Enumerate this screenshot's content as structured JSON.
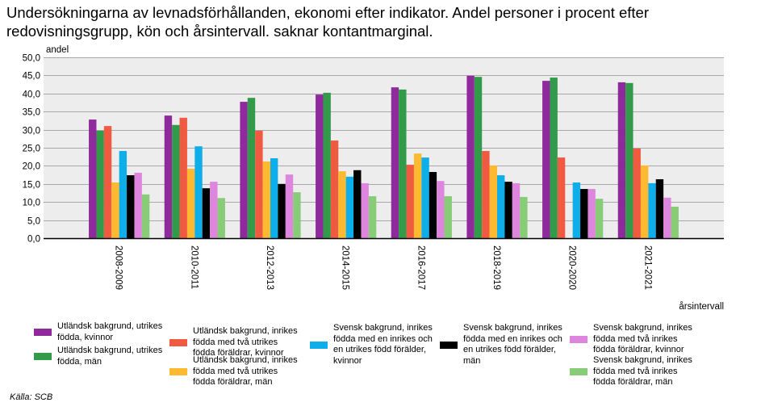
{
  "chart_data": {
    "type": "bar",
    "title": "Undersökningarna av levnadsförhållanden, ekonomi efter indikator. Andel personer i procent efter redovisningsgrupp, kön och årsintervall. saknar kontantmarginal.",
    "xlabel": "årsintervall",
    "ylabel": "andel",
    "ylim": [
      0,
      50
    ],
    "yticks": [
      "0,0",
      "5,0",
      "10,0",
      "15,0",
      "20,0",
      "25,0",
      "30,0",
      "35,0",
      "40,0",
      "45,0",
      "50,0"
    ],
    "ytick_values": [
      0,
      5,
      10,
      15,
      20,
      25,
      30,
      35,
      40,
      45,
      50
    ],
    "grid": true,
    "legend_position": "bottom",
    "categories": [
      "2008-2009",
      "2010-2011",
      "2012-2013",
      "2014-2015",
      "2016-2017",
      "2018-2019",
      "2020-2020",
      "2021-2021"
    ],
    "series": [
      {
        "name": "Utländsk bakgrund, utrikes födda, kvinnor",
        "color": "#8e2a9b",
        "values": [
          32.8,
          33.9,
          37.7,
          39.7,
          41.7,
          44.9,
          43.5,
          43.1
        ]
      },
      {
        "name": "Utländsk bakgrund, utrikes födda, män",
        "color": "#329b4a",
        "values": [
          29.7,
          31.3,
          38.8,
          40.2,
          41.1,
          44.6,
          44.4,
          42.9
        ]
      },
      {
        "name": "Utländsk bakgrund, inrikes födda med två utrikes födda föräldrar, kvinnor",
        "color": "#f05a40",
        "values": [
          31.0,
          33.3,
          29.7,
          27.0,
          20.3,
          24.1,
          22.3,
          24.8
        ]
      },
      {
        "name": "Utländsk bakgrund, inrikes födda med två utrikes födda föräldrar, män",
        "color": "#fdb92f",
        "values": [
          15.4,
          19.2,
          21.2,
          18.5,
          23.4,
          20.1,
          null,
          20.1
        ]
      },
      {
        "name": "Svensk bakgrund, inrikes födda med en inrikes och en utrikes född förälder, kvinnor",
        "color": "#0eaeea",
        "values": [
          24.1,
          25.4,
          22.1,
          17.0,
          22.3,
          17.4,
          15.4,
          15.2
        ]
      },
      {
        "name": "Svensk bakgrund, inrikes födda med en inrikes och en utrikes född förälder, män",
        "color": "#000000",
        "values": [
          17.4,
          13.8,
          15.0,
          18.8,
          18.3,
          15.6,
          13.6,
          16.3
        ]
      },
      {
        "name": "Svensk bakgrund, inrikes födda med två inrikes födda föräldrar, kvinnor",
        "color": "#de86dd",
        "values": [
          18.1,
          15.6,
          17.6,
          15.2,
          15.8,
          15.2,
          13.6,
          11.2
        ]
      },
      {
        "name": "Svensk bakgrund, inrikes födda med två inrikes födda föräldrar, män",
        "color": "#88cc78",
        "values": [
          12.1,
          11.1,
          12.7,
          11.6,
          11.6,
          11.4,
          10.9,
          8.7
        ]
      }
    ],
    "source": "Källa: SCB"
  }
}
